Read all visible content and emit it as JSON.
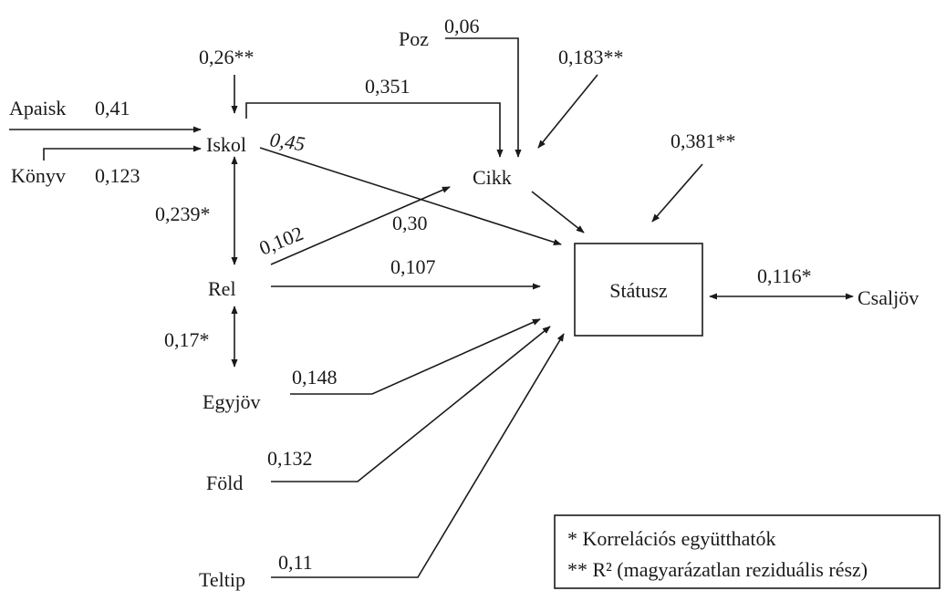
{
  "nodes": [
    {
      "label": "Apaisk"
    },
    {
      "label": "Könyv"
    },
    {
      "label": "Iskol"
    },
    {
      "label": "Poz"
    },
    {
      "label": "Cikk"
    },
    {
      "label": "Rel"
    },
    {
      "label": "Státusz"
    },
    {
      "label": "Csaljöv"
    },
    {
      "label": "Egyjöv"
    },
    {
      "label": "Föld"
    },
    {
      "label": "Teltip"
    }
  ],
  "edges": [
    {
      "label": "0,41"
    },
    {
      "label": "0,123"
    },
    {
      "label": "0,26**"
    },
    {
      "label": "0,06"
    },
    {
      "label": "0,351"
    },
    {
      "label": "0,183**"
    },
    {
      "label": "0,45"
    },
    {
      "label": "0,381**"
    },
    {
      "label": "0,239*"
    },
    {
      "label": "0,102"
    },
    {
      "label": "0,30"
    },
    {
      "label": "0,107"
    },
    {
      "label": "0,116*"
    },
    {
      "label": "0,17*"
    },
    {
      "label": "0,148"
    },
    {
      "label": "0,132"
    },
    {
      "label": "0,11"
    }
  ],
  "legend": {
    "items": [
      "* Korrelációs együtthatók",
      "** R² (magyarázatlan reziduális rész)"
    ]
  }
}
